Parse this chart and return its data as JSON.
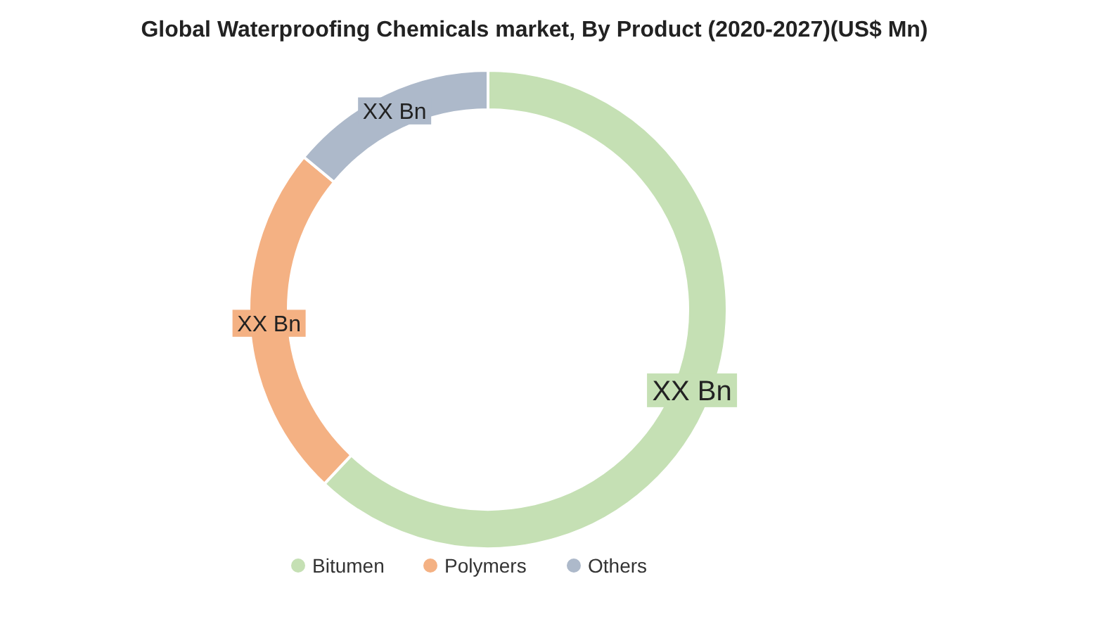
{
  "chart_data": {
    "type": "donut",
    "title": "Global Waterproofing Chemicals market, By Product (2020-2027)(US$ Mn)",
    "categories": [
      "Bitumen",
      "Polymers",
      "Others"
    ],
    "values": [
      62,
      24,
      14
    ],
    "colors": [
      "#c5e0b4",
      "#f4b183",
      "#adb9ca"
    ],
    "value_labels": [
      "XX Bn",
      "XX Bn",
      "XX Bn"
    ],
    "legend": "bottom"
  }
}
